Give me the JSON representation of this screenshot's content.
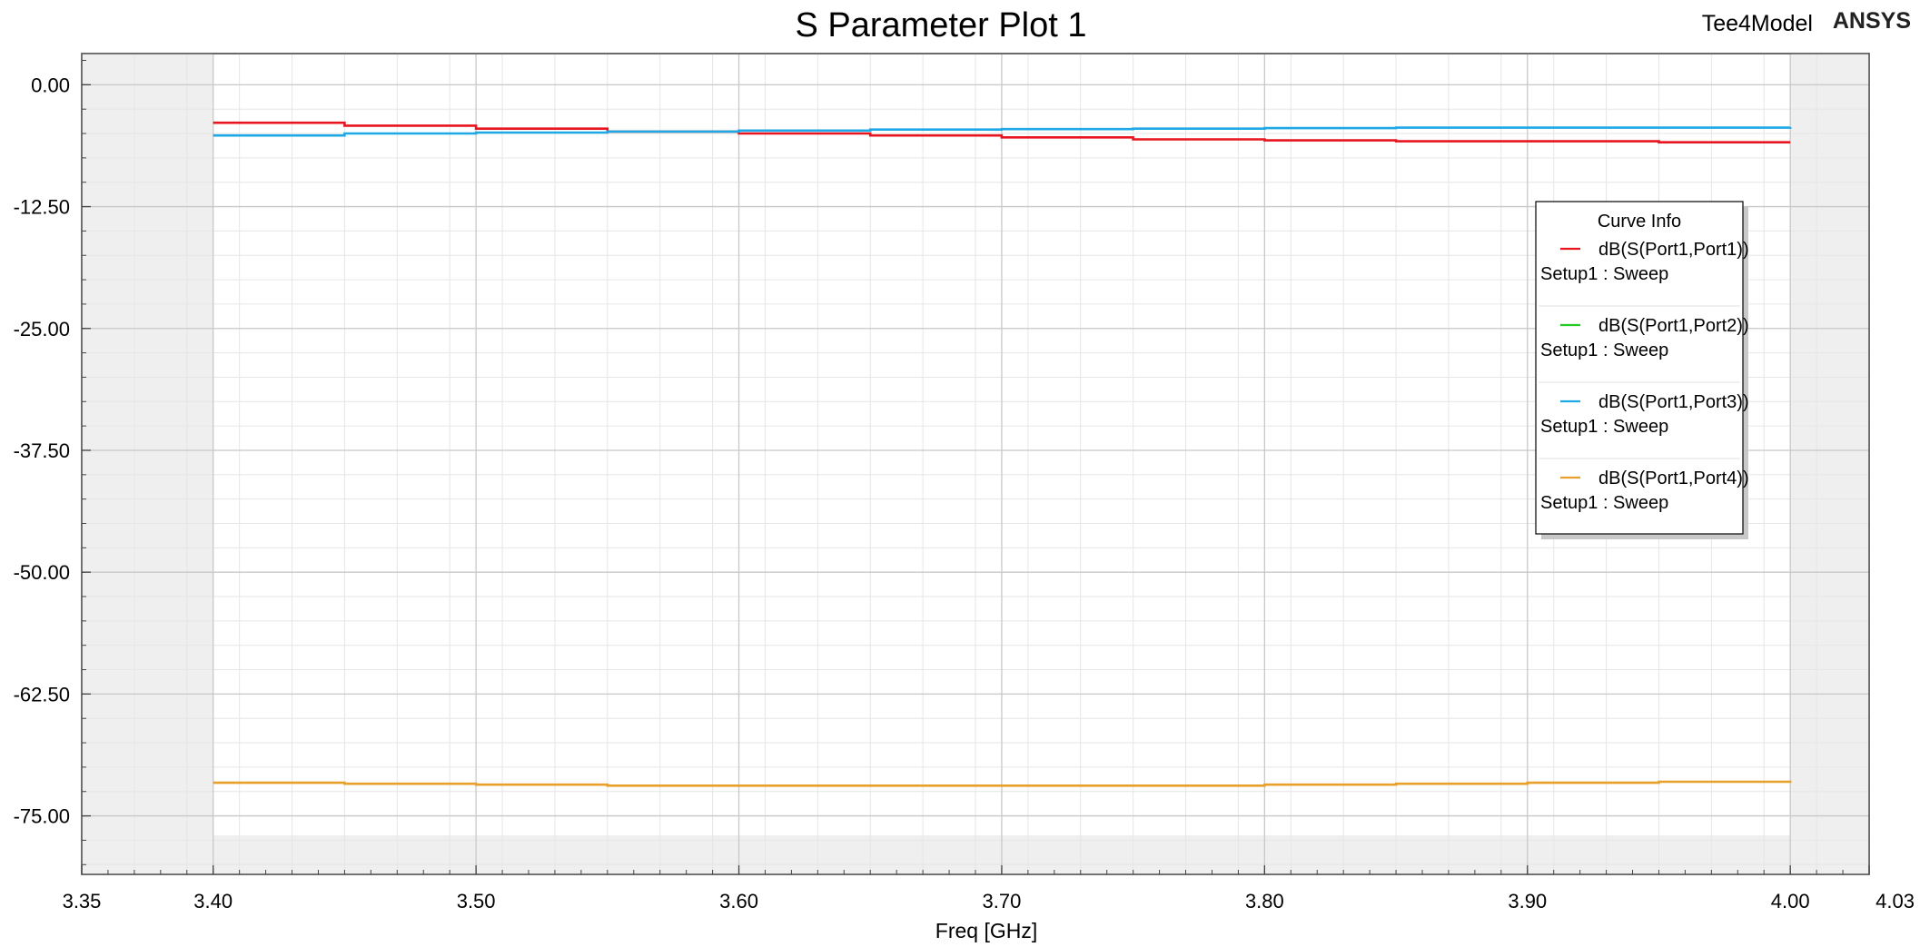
{
  "header": {
    "title": "S Parameter Plot 1",
    "model_name": "Tee4Model",
    "brand": "ANSYS"
  },
  "legend": {
    "title": "Curve Info",
    "entries": [
      {
        "name": "dB(S(Port1,Port1))",
        "setup": "Setup1 : Sweep",
        "color": "#e8141e"
      },
      {
        "name": "dB(S(Port1,Port2))",
        "setup": "Setup1 : Sweep",
        "color": "#22cc22"
      },
      {
        "name": "dB(S(Port1,Port3))",
        "setup": "Setup1 : Sweep",
        "color": "#1ea8e6"
      },
      {
        "name": "dB(S(Port1,Port4))",
        "setup": "Setup1 : Sweep",
        "color": "#e8a02a"
      }
    ]
  },
  "chart_data": {
    "type": "line",
    "title": "S Parameter Plot 1",
    "xlabel": "Freq [GHz]",
    "ylabel": "",
    "xlim": [
      3.35,
      4.03
    ],
    "ylim": [
      -81,
      3.2
    ],
    "data_xrange": [
      3.4,
      4.0
    ],
    "x_ticks": [
      3.35,
      3.4,
      3.5,
      3.6,
      3.7,
      3.8,
      3.9,
      4.0,
      4.03
    ],
    "x_tick_labels": [
      "3.35",
      "3.40",
      "3.50",
      "3.60",
      "3.70",
      "3.80",
      "3.90",
      "4.00",
      "4.03"
    ],
    "y_ticks": [
      0,
      -12.5,
      -25,
      -37.5,
      -50,
      -62.5,
      -75
    ],
    "y_tick_labels": [
      "0.00",
      "-12.50",
      "-25.00",
      "-37.50",
      "-50.00",
      "-62.50",
      "-75.00"
    ],
    "grid": true,
    "legend_position": "right",
    "series": [
      {
        "name": "dB(S(Port1,Port1))",
        "color": "#e8141e",
        "x": [
          3.4,
          3.45,
          3.5,
          3.55,
          3.6,
          3.65,
          3.7,
          3.75,
          3.8,
          3.85,
          3.9,
          3.95,
          4.0
        ],
        "y": [
          -3.9,
          -4.2,
          -4.5,
          -4.8,
          -5.0,
          -5.2,
          -5.4,
          -5.6,
          -5.7,
          -5.8,
          -5.8,
          -5.9,
          -5.9
        ]
      },
      {
        "name": "dB(S(Port1,Port2))",
        "color": "#22cc22",
        "x": [],
        "y": []
      },
      {
        "name": "dB(S(Port1,Port3))",
        "color": "#1ea8e6",
        "x": [
          3.4,
          3.45,
          3.5,
          3.55,
          3.6,
          3.65,
          3.7,
          3.75,
          3.8,
          3.85,
          3.9,
          3.95,
          4.0
        ],
        "y": [
          -5.2,
          -5.0,
          -4.9,
          -4.8,
          -4.7,
          -4.6,
          -4.55,
          -4.5,
          -4.45,
          -4.4,
          -4.4,
          -4.4,
          -4.35
        ]
      },
      {
        "name": "dB(S(Port1,Port4))",
        "color": "#e8a02a",
        "x": [
          3.4,
          3.45,
          3.5,
          3.55,
          3.6,
          3.65,
          3.7,
          3.75,
          3.8,
          3.85,
          3.9,
          3.95,
          4.0
        ],
        "y": [
          -71.6,
          -71.7,
          -71.8,
          -71.9,
          -71.9,
          -71.9,
          -71.9,
          -71.9,
          -71.8,
          -71.7,
          -71.6,
          -71.5,
          -71.4
        ]
      }
    ]
  }
}
